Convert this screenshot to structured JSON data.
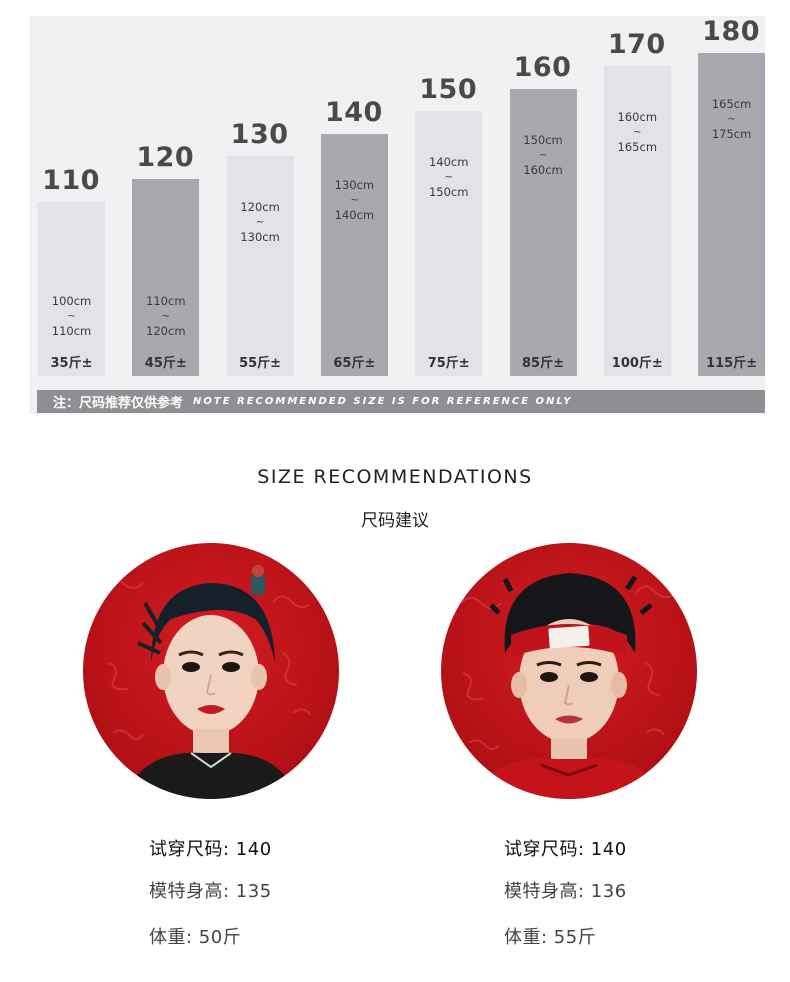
{
  "size_chart": {
    "bars": [
      {
        "size": "110",
        "range_min": "100cm",
        "range_max": "110cm",
        "weight": "35斤±",
        "shade": "light",
        "level": 0.54
      },
      {
        "size": "120",
        "range_min": "110cm",
        "range_max": "120cm",
        "weight": "45斤±",
        "shade": "dark",
        "level": 0.61
      },
      {
        "size": "130",
        "range_min": "120cm",
        "range_max": "130cm",
        "weight": "55斤±",
        "shade": "light",
        "level": 0.68
      },
      {
        "size": "140",
        "range_min": "130cm",
        "range_max": "140cm",
        "weight": "65斤±",
        "shade": "dark",
        "level": 0.75
      },
      {
        "size": "150",
        "range_min": "140cm",
        "range_max": "150cm",
        "weight": "75斤±",
        "shade": "light",
        "level": 0.82
      },
      {
        "size": "160",
        "range_min": "150cm",
        "range_max": "160cm",
        "weight": "85斤±",
        "shade": "dark",
        "level": 0.89
      },
      {
        "size": "170",
        "range_min": "160cm",
        "range_max": "165cm",
        "weight": "100斤±",
        "shade": "light",
        "level": 0.96
      },
      {
        "size": "180",
        "range_min": "165cm",
        "range_max": "175cm",
        "weight": "115斤±",
        "shade": "dark",
        "level": 1.0
      }
    ],
    "range_separator": "~",
    "note_cn": "注：尺码推荐仅供参考",
    "note_en": "NOTE RECOMMENDED SIZE IS FOR REFERENCE ONLY"
  },
  "heading": {
    "en": "SIZE RECOMMENDATIONS",
    "cn": "尺码建议"
  },
  "models": [
    {
      "tried_size": "试穿尺码: 140",
      "height": "模特身高: 135",
      "weight": "体重: 50斤"
    },
    {
      "tried_size": "试穿尺码: 140",
      "height": "模特身高: 136",
      "weight": "体重: 55斤"
    }
  ],
  "colors": {
    "bar_light": "#e3e2e8",
    "bar_dark": "#a9a8ad",
    "note_bar": "#8f8e93",
    "portrait_red": "#c4141a"
  }
}
